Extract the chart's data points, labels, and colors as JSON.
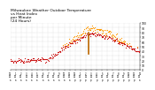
{
  "title": "Milwaukee Weather Outdoor Temperature\nvs Heat Index\nper Minute\n(24 Hours)",
  "title_fontsize": 3.2,
  "background_color": "#ffffff",
  "plot_bg_color": "#ffffff",
  "grid_color": "#bbbbbb",
  "temp_color": "#cc1111",
  "heat_color": "#ff9900",
  "vertical_line_color": "#bb6600",
  "ylim_min": 0,
  "ylim_max": 100,
  "xlim_min": 0,
  "xlim_max": 1440,
  "yticks": [
    0,
    10,
    20,
    30,
    40,
    50,
    60,
    70,
    80,
    90,
    100
  ],
  "num_minutes": 1440,
  "seed": 7,
  "vline_x": 870
}
